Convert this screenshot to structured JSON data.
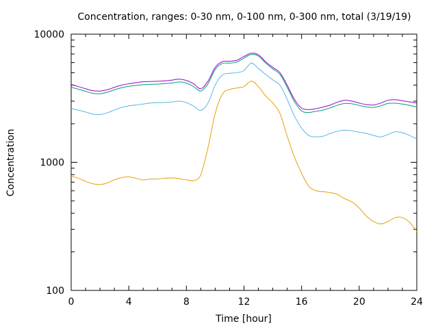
{
  "chart_data": {
    "type": "line",
    "title": "Concentration, ranges: 0-30 nm, 0-100 nm, 0-300 nm, total (3/19/19)",
    "xlabel": "Time [hour]",
    "ylabel": "Concentration",
    "xlim": [
      0,
      24
    ],
    "ylim": [
      100,
      10000
    ],
    "yscale": "log",
    "grid": false,
    "x_ticks": [
      0,
      4,
      8,
      12,
      16,
      20,
      24
    ],
    "x_tick_labels": [
      "0",
      "4",
      "8",
      "12",
      "16",
      "20",
      "24"
    ],
    "y_ticks": [
      100,
      1000,
      10000
    ],
    "y_tick_labels": [
      "100",
      "1000",
      "10000"
    ],
    "x": [
      0,
      0.5,
      1,
      1.5,
      2,
      2.5,
      3,
      3.5,
      4,
      4.5,
      5,
      5.5,
      6,
      6.5,
      7,
      7.5,
      8,
      8.5,
      9,
      9.5,
      10,
      10.5,
      11,
      11.5,
      12,
      12.5,
      13,
      13.5,
      14,
      14.5,
      15,
      15.5,
      16,
      16.5,
      17,
      17.5,
      18,
      18.5,
      19,
      19.5,
      20,
      20.5,
      21,
      21.5,
      22,
      22.5,
      23,
      23.5,
      24
    ],
    "series": [
      {
        "color": "#9400d3",
        "values": [
          4050,
          3900,
          3750,
          3620,
          3600,
          3680,
          3850,
          4000,
          4100,
          4180,
          4250,
          4270,
          4290,
          4320,
          4380,
          4450,
          4350,
          4100,
          3750,
          4300,
          5500,
          6100,
          6150,
          6250,
          6700,
          7100,
          6900,
          6100,
          5500,
          5000,
          4000,
          3100,
          2650,
          2580,
          2620,
          2700,
          2800,
          2950,
          3050,
          3000,
          2900,
          2820,
          2800,
          2900,
          3050,
          3080,
          3020,
          2960,
          2900
        ]
      },
      {
        "color": "#009e73",
        "values": [
          3850,
          3720,
          3580,
          3450,
          3430,
          3520,
          3680,
          3820,
          3920,
          3980,
          4030,
          4060,
          4080,
          4110,
          4160,
          4230,
          4150,
          3900,
          3600,
          4100,
          5300,
          5900,
          5950,
          6050,
          6500,
          6950,
          6750,
          5950,
          5350,
          4850,
          3850,
          2980,
          2520,
          2450,
          2500,
          2560,
          2660,
          2790,
          2880,
          2860,
          2780,
          2700,
          2680,
          2760,
          2880,
          2890,
          2850,
          2780,
          2700
        ]
      },
      {
        "color": "#56b4e9",
        "values": [
          2620,
          2550,
          2470,
          2380,
          2360,
          2430,
          2560,
          2680,
          2760,
          2800,
          2850,
          2900,
          2920,
          2930,
          2960,
          3000,
          2920,
          2750,
          2540,
          2900,
          4000,
          4800,
          4950,
          5000,
          5200,
          5950,
          5400,
          4850,
          4400,
          4000,
          3100,
          2300,
          1850,
          1620,
          1580,
          1600,
          1680,
          1750,
          1780,
          1760,
          1720,
          1680,
          1620,
          1580,
          1650,
          1730,
          1700,
          1620,
          1520
        ]
      },
      {
        "color": "#e69f00",
        "values": [
          780,
          750,
          710,
          680,
          670,
          690,
          730,
          760,
          770,
          750,
          730,
          740,
          740,
          750,
          755,
          745,
          730,
          720,
          800,
          1300,
          2400,
          3400,
          3700,
          3800,
          3900,
          4300,
          3900,
          3300,
          2900,
          2400,
          1600,
          1100,
          820,
          650,
          600,
          590,
          580,
          560,
          520,
          490,
          440,
          380,
          345,
          330,
          345,
          370,
          370,
          340,
          290
        ]
      }
    ]
  }
}
